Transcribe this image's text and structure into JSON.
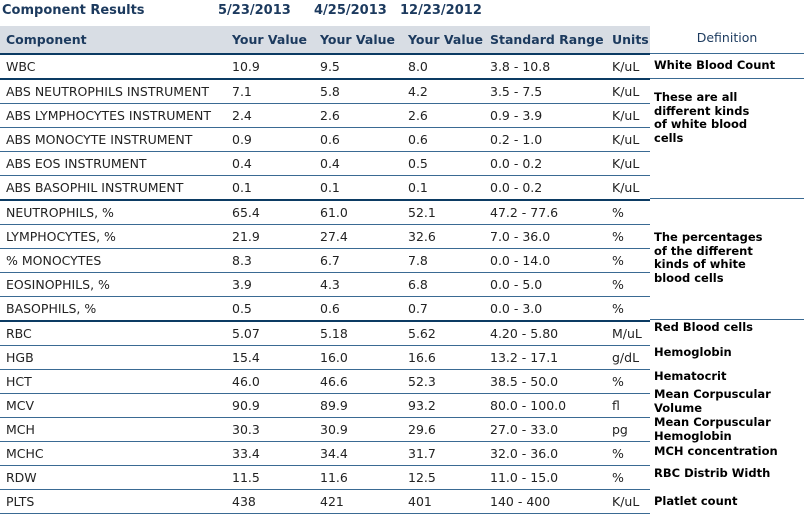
{
  "header": {
    "title": "Component Results",
    "dates": [
      "5/23/2013",
      "4/25/2013",
      "12/23/2012"
    ]
  },
  "columns": [
    "Component",
    "Your Value",
    "Your Value",
    "Your Value",
    "Standard Range",
    "Units"
  ],
  "definition_header": "Definition",
  "rows": [
    {
      "component": "WBC",
      "v1": "10.9",
      "v2": "9.5",
      "v3": "8.0",
      "range": "3.8 - 10.8",
      "units": "K/uL"
    },
    {
      "component": "ABS NEUTROPHILS INSTRUMENT",
      "v1": "7.1",
      "v2": "5.8",
      "v3": "4.2",
      "range": "3.5 - 7.5",
      "units": "K/uL"
    },
    {
      "component": "ABS LYMPHOCYTES INSTRUMENT",
      "v1": "2.4",
      "v2": "2.6",
      "v3": "2.6",
      "range": "0.9 - 3.9",
      "units": "K/uL"
    },
    {
      "component": "ABS MONOCYTE INSTRUMENT",
      "v1": "0.9",
      "v2": "0.6",
      "v3": "0.6",
      "range": "0.2 - 1.0",
      "units": "K/uL"
    },
    {
      "component": "ABS EOS INSTRUMENT",
      "v1": "0.4",
      "v2": "0.4",
      "v3": "0.5",
      "range": "0.0 - 0.2",
      "units": "K/uL"
    },
    {
      "component": "ABS BASOPHIL INSTRUMENT",
      "v1": "0.1",
      "v2": "0.1",
      "v3": "0.1",
      "range": "0.0 - 0.2",
      "units": "K/uL"
    },
    {
      "component": "NEUTROPHILS, %",
      "v1": "65.4",
      "v2": "61.0",
      "v3": "52.1",
      "range": "47.2 - 77.6",
      "units": "%"
    },
    {
      "component": "LYMPHOCYTES, %",
      "v1": "21.9",
      "v2": "27.4",
      "v3": "32.6",
      "range": "7.0 - 36.0",
      "units": "%"
    },
    {
      "component": "% MONOCYTES",
      "v1": "8.3",
      "v2": "6.7",
      "v3": "7.8",
      "range": "0.0 - 14.0",
      "units": "%"
    },
    {
      "component": "EOSINOPHILS, %",
      "v1": "3.9",
      "v2": "4.3",
      "v3": "6.8",
      "range": "0.0 - 5.0",
      "units": "%"
    },
    {
      "component": "BASOPHILS, %",
      "v1": "0.5",
      "v2": "0.6",
      "v3": "0.7",
      "range": "0.0 - 3.0",
      "units": "%"
    },
    {
      "component": "RBC",
      "v1": "5.07",
      "v2": "5.18",
      "v3": "5.62",
      "range": "4.20 - 5.80",
      "units": "M/uL"
    },
    {
      "component": "HGB",
      "v1": "15.4",
      "v2": "16.0",
      "v3": "16.6",
      "range": "13.2 - 17.1",
      "units": "g/dL"
    },
    {
      "component": "HCT",
      "v1": "46.0",
      "v2": "46.6",
      "v3": "52.3",
      "range": "38.5 - 50.0",
      "units": "%"
    },
    {
      "component": "MCV",
      "v1": "90.9",
      "v2": "89.9",
      "v3": "93.2",
      "range": "80.0 - 100.0",
      "units": "fl"
    },
    {
      "component": "MCH",
      "v1": "30.3",
      "v2": "30.9",
      "v3": "29.6",
      "range": "27.0 - 33.0",
      "units": "pg"
    },
    {
      "component": "MCHC",
      "v1": "33.4",
      "v2": "34.4",
      "v3": "31.7",
      "range": "32.0 - 36.0",
      "units": "%"
    },
    {
      "component": "RDW",
      "v1": "11.5",
      "v2": "11.6",
      "v3": "12.5",
      "range": "11.0 - 15.0",
      "units": "%"
    },
    {
      "component": "PLTS",
      "v1": "438",
      "v2": "421",
      "v3": "401",
      "range": "140 - 400",
      "units": "K/uL"
    }
  ],
  "definitions": [
    "White Blood Count",
    "These are all different kinds of white blood cells",
    "The percentages of the different kinds of white blood cells",
    "Red Blood cells",
    "Hemoglobin",
    "Hematocrit",
    "Mean Corpuscular Volume",
    "Mean Corpuscular Hemoglobin",
    "MCH concentration",
    "RBC Distrib Width",
    "Platlet count"
  ]
}
